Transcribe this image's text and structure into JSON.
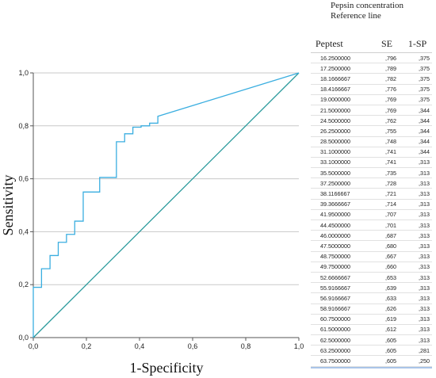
{
  "legend": {
    "line1": "Pepsin concentration",
    "line2": "Reference line"
  },
  "colors": {
    "roc_curve": "#3aaee0",
    "reference_line": "#2a9a9c",
    "gridline": "#c8c8c8",
    "axis": "#555555"
  },
  "chart_data": {
    "type": "line",
    "xlabel": "1-Specificity",
    "ylabel": "Sensitivity",
    "xlim": [
      0,
      1
    ],
    "ylim": [
      0,
      1
    ],
    "xticks": [
      "0,0",
      "0,2",
      "0,4",
      "0,6",
      "0,8",
      "1,0"
    ],
    "yticks": [
      "0,0",
      "0,2",
      "0,4",
      "0,6",
      "0,8",
      "1,0"
    ],
    "grid": "horizontal",
    "series": [
      {
        "name": "Pepsin concentration",
        "kind": "step",
        "x": [
          0,
          0,
          0.031,
          0.031,
          0.063,
          0.063,
          0.094,
          0.094,
          0.125,
          0.125,
          0.156,
          0.156,
          0.188,
          0.188,
          0.25,
          0.25,
          0.313,
          0.313,
          0.344,
          0.344,
          0.375,
          0.375,
          0.406,
          0.406,
          0.438,
          0.438,
          0.469,
          0.469,
          1.0
        ],
        "y": [
          0,
          0.19,
          0.19,
          0.26,
          0.26,
          0.31,
          0.31,
          0.36,
          0.36,
          0.39,
          0.39,
          0.44,
          0.44,
          0.55,
          0.55,
          0.605,
          0.605,
          0.74,
          0.74,
          0.77,
          0.77,
          0.795,
          0.795,
          0.8,
          0.8,
          0.81,
          0.81,
          0.836,
          1.0
        ]
      },
      {
        "name": "Reference line",
        "kind": "line",
        "x": [
          0,
          1
        ],
        "y": [
          0,
          1
        ]
      }
    ]
  },
  "table": {
    "headers": [
      "Peptest",
      "SE",
      "1-SP"
    ],
    "rows": [
      [
        "16.2500000",
        ",796",
        ",375"
      ],
      [
        "17.2500000",
        ",789",
        ",375"
      ],
      [
        "18.1666667",
        ",782",
        ",375"
      ],
      [
        "18.4166667",
        ",776",
        ",375"
      ],
      [
        "19.0000000",
        ",769",
        ",375"
      ],
      [
        "21.5000000",
        ",769",
        ",344"
      ],
      [
        "24.5000000",
        ",762",
        ",344"
      ],
      [
        "26.2500000",
        ",755",
        ",344"
      ],
      [
        "28.5000000",
        ",748",
        ",344"
      ],
      [
        "31.1000000",
        ",741",
        ",344"
      ],
      [
        "33.1000000",
        ",741",
        ",313"
      ],
      [
        "35.5000000",
        ",735",
        ",313"
      ],
      [
        "37.2500000",
        ",728",
        ",313"
      ],
      [
        "38.1166667",
        ",721",
        ",313"
      ],
      [
        "39.3666667",
        ",714",
        ",313"
      ],
      [
        "41.9500000",
        ",707",
        ",313"
      ],
      [
        "44.4500000",
        ",701",
        ",313"
      ],
      [
        "46.0000000",
        ",687",
        ",313"
      ],
      [
        "47.5000000",
        ",680",
        ",313"
      ],
      [
        "48.7500000",
        ",667",
        ",313"
      ],
      [
        "49.7500000",
        ",660",
        ",313"
      ],
      [
        "52.6666667",
        ",653",
        ",313"
      ],
      [
        "55.9166667",
        ",639",
        ",313"
      ],
      [
        "56.9166667",
        ",633",
        ",313"
      ],
      [
        "58.9166667",
        ",626",
        ",313"
      ],
      [
        "60.7500000",
        ",619",
        ",313"
      ],
      [
        "61.5000000",
        ",612",
        ",313"
      ],
      [
        "62.5000000",
        ",605",
        ",313"
      ],
      [
        "63.2500000",
        ",605",
        ",281"
      ],
      [
        "63.7500000",
        ",605",
        ",250"
      ]
    ]
  }
}
